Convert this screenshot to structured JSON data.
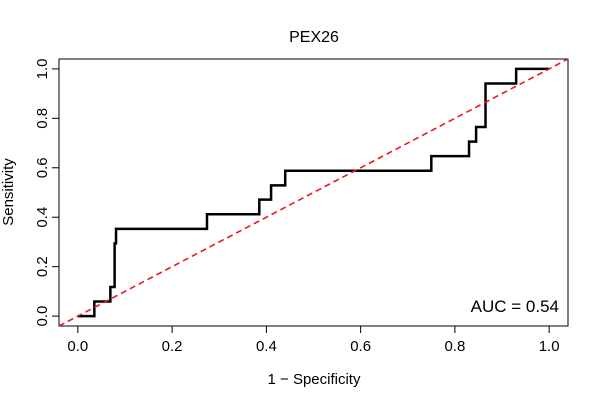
{
  "chart_data": {
    "type": "line",
    "title": "PEX26",
    "xlabel": "1 − Specificity",
    "ylabel": "Sensitivity",
    "xlim": [
      -0.04,
      1.04
    ],
    "ylim": [
      -0.04,
      1.04
    ],
    "x_ticks": [
      0.0,
      0.2,
      0.4,
      0.6,
      0.8,
      1.0
    ],
    "x_tick_labels": [
      "0.0",
      "0.2",
      "0.4",
      "0.6",
      "0.8",
      "1.0"
    ],
    "y_ticks": [
      0.0,
      0.2,
      0.4,
      0.6,
      0.8,
      1.0
    ],
    "y_tick_labels": [
      "0.0",
      "0.2",
      "0.4",
      "0.6",
      "0.8",
      "1.0"
    ],
    "grid": false,
    "series": [
      {
        "name": "ROC",
        "color": "#000000",
        "style": "step",
        "x": [
          0.0,
          0.035,
          0.035,
          0.052,
          0.052,
          0.069,
          0.069,
          0.078,
          0.078,
          0.081,
          0.081,
          0.274,
          0.274,
          0.385,
          0.385,
          0.41,
          0.41,
          0.44,
          0.44,
          0.75,
          0.75,
          0.83,
          0.83,
          0.845,
          0.845,
          0.865,
          0.865,
          0.93,
          0.93,
          1.0
        ],
        "y": [
          0.0,
          0.0,
          0.059,
          0.059,
          0.059,
          0.059,
          0.118,
          0.118,
          0.294,
          0.294,
          0.353,
          0.353,
          0.412,
          0.412,
          0.471,
          0.471,
          0.529,
          0.529,
          0.588,
          0.588,
          0.647,
          0.647,
          0.706,
          0.706,
          0.765,
          0.765,
          0.941,
          0.941,
          1.0,
          1.0
        ]
      },
      {
        "name": "Reference",
        "color": "#e8191f",
        "style": "dashed",
        "x": [
          -0.04,
          1.04
        ],
        "y": [
          -0.04,
          1.04
        ]
      }
    ],
    "annotations": [
      {
        "text": "AUC = 0.54",
        "position": "bottom-right"
      }
    ]
  }
}
